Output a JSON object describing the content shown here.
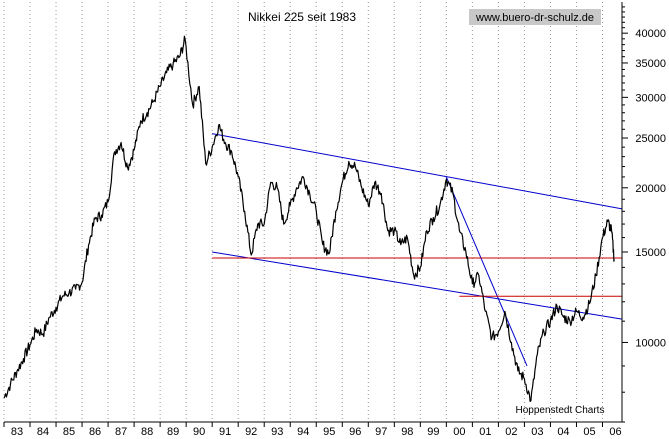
{
  "chart_data": {
    "type": "line",
    "title": "Nikkei 225 seit 1983",
    "watermark": "www.buero-dr-schulz.de",
    "source": "Hoppenstedt Charts",
    "y_scale": "log",
    "ylim": [
      7000,
      46000
    ],
    "y_ticks": [
      10000,
      15000,
      20000,
      25000,
      30000,
      35000,
      40000
    ],
    "y_tick_labels": [
      "10000",
      "15000",
      "20000",
      "25000",
      "30000",
      "35000",
      "40000"
    ],
    "x_range": [
      1983.0,
      2006.75
    ],
    "x_ticks": [
      1983,
      1984,
      1985,
      1986,
      1987,
      1988,
      1989,
      1990,
      1991,
      1992,
      1993,
      1994,
      1995,
      1996,
      1997,
      1998,
      1999,
      2000,
      2001,
      2002,
      2003,
      2004,
      2005,
      2006
    ],
    "x_tick_labels": [
      "83",
      "84",
      "85",
      "86",
      "87",
      "88",
      "89",
      "90",
      "91",
      "92",
      "93",
      "94",
      "95",
      "96",
      "97",
      "98",
      "99",
      "00",
      "01",
      "02",
      "03",
      "04",
      "05",
      "06"
    ],
    "grid": "vertical dotted",
    "colors": {
      "price": "#000000",
      "trend": "#0000cc",
      "support": "#cc0000",
      "grid": "#999999",
      "watermark_bg": "#c8c8c8"
    },
    "series": [
      {
        "points": [
          [
            1983.0,
            7800
          ],
          [
            1983.25,
            8300
          ],
          [
            1983.5,
            8800
          ],
          [
            1983.75,
            9300
          ],
          [
            1984.0,
            9900
          ],
          [
            1984.25,
            10600
          ],
          [
            1984.5,
            10400
          ],
          [
            1984.75,
            11200
          ],
          [
            1985.0,
            11700
          ],
          [
            1985.25,
            12300
          ],
          [
            1985.5,
            12500
          ],
          [
            1985.75,
            12700
          ],
          [
            1986.0,
            13100
          ],
          [
            1986.25,
            15500
          ],
          [
            1986.5,
            17400
          ],
          [
            1986.75,
            17700
          ],
          [
            1987.0,
            18800
          ],
          [
            1987.25,
            23500
          ],
          [
            1987.5,
            24500
          ],
          [
            1987.75,
            21900
          ],
          [
            1988.0,
            23700
          ],
          [
            1988.25,
            27000
          ],
          [
            1988.5,
            28000
          ],
          [
            1988.75,
            29500
          ],
          [
            1989.0,
            31500
          ],
          [
            1989.25,
            33500
          ],
          [
            1989.5,
            34800
          ],
          [
            1989.75,
            36000
          ],
          [
            1989.96,
            38900
          ],
          [
            1990.25,
            29000
          ],
          [
            1990.5,
            31500
          ],
          [
            1990.75,
            22300
          ],
          [
            1991.0,
            24000
          ],
          [
            1991.25,
            26500
          ],
          [
            1991.5,
            24500
          ],
          [
            1991.75,
            23500
          ],
          [
            1992.0,
            21000
          ],
          [
            1992.25,
            18000
          ],
          [
            1992.5,
            14800
          ],
          [
            1992.75,
            17000
          ],
          [
            1993.0,
            17000
          ],
          [
            1993.25,
            20500
          ],
          [
            1993.5,
            20000
          ],
          [
            1993.75,
            17000
          ],
          [
            1994.0,
            18500
          ],
          [
            1994.25,
            20000
          ],
          [
            1994.5,
            21000
          ],
          [
            1994.75,
            19500
          ],
          [
            1995.0,
            18000
          ],
          [
            1995.25,
            15500
          ],
          [
            1995.5,
            14900
          ],
          [
            1995.75,
            18000
          ],
          [
            1996.0,
            20500
          ],
          [
            1996.25,
            22500
          ],
          [
            1996.5,
            22000
          ],
          [
            1996.75,
            20000
          ],
          [
            1997.0,
            18500
          ],
          [
            1997.25,
            20500
          ],
          [
            1997.5,
            19500
          ],
          [
            1997.75,
            16500
          ],
          [
            1998.0,
            16500
          ],
          [
            1998.25,
            15500
          ],
          [
            1998.5,
            16000
          ],
          [
            1998.75,
            13500
          ],
          [
            1999.0,
            14000
          ],
          [
            1999.25,
            16500
          ],
          [
            1999.5,
            17500
          ],
          [
            1999.75,
            18500
          ],
          [
            2000.0,
            20800
          ],
          [
            2000.25,
            19500
          ],
          [
            2000.5,
            16500
          ],
          [
            2000.75,
            15000
          ],
          [
            2001.0,
            13000
          ],
          [
            2001.25,
            13500
          ],
          [
            2001.5,
            11500
          ],
          [
            2001.75,
            10200
          ],
          [
            2002.0,
            10500
          ],
          [
            2002.25,
            11500
          ],
          [
            2002.5,
            10000
          ],
          [
            2002.75,
            8800
          ],
          [
            2003.0,
            8500
          ],
          [
            2003.25,
            7700
          ],
          [
            2003.5,
            9500
          ],
          [
            2003.75,
            10500
          ],
          [
            2004.0,
            11000
          ],
          [
            2004.25,
            11800
          ],
          [
            2004.5,
            11200
          ],
          [
            2004.75,
            11000
          ],
          [
            2005.0,
            11500
          ],
          [
            2005.25,
            11200
          ],
          [
            2005.5,
            11900
          ],
          [
            2005.75,
            13500
          ],
          [
            2006.0,
            16000
          ],
          [
            2006.2,
            17200
          ],
          [
            2006.35,
            16500
          ],
          [
            2006.45,
            14500
          ]
        ]
      }
    ],
    "trendlines": [
      {
        "from": [
          1991.0,
          25500
        ],
        "to": [
          2006.75,
          18200
        ],
        "color": "#0000cc"
      },
      {
        "from": [
          1991.0,
          15000
        ],
        "to": [
          2006.75,
          11100
        ],
        "color": "#0000cc"
      },
      {
        "from": [
          2000.0,
          21000
        ],
        "to": [
          2003.1,
          9000
        ],
        "color": "#0000cc"
      },
      {
        "from": [
          1991.0,
          14600
        ],
        "to": [
          2006.75,
          14600
        ],
        "color": "#cc0000"
      },
      {
        "from": [
          2000.5,
          12300
        ],
        "to": [
          2006.75,
          12300
        ],
        "color": "#cc0000"
      }
    ]
  }
}
